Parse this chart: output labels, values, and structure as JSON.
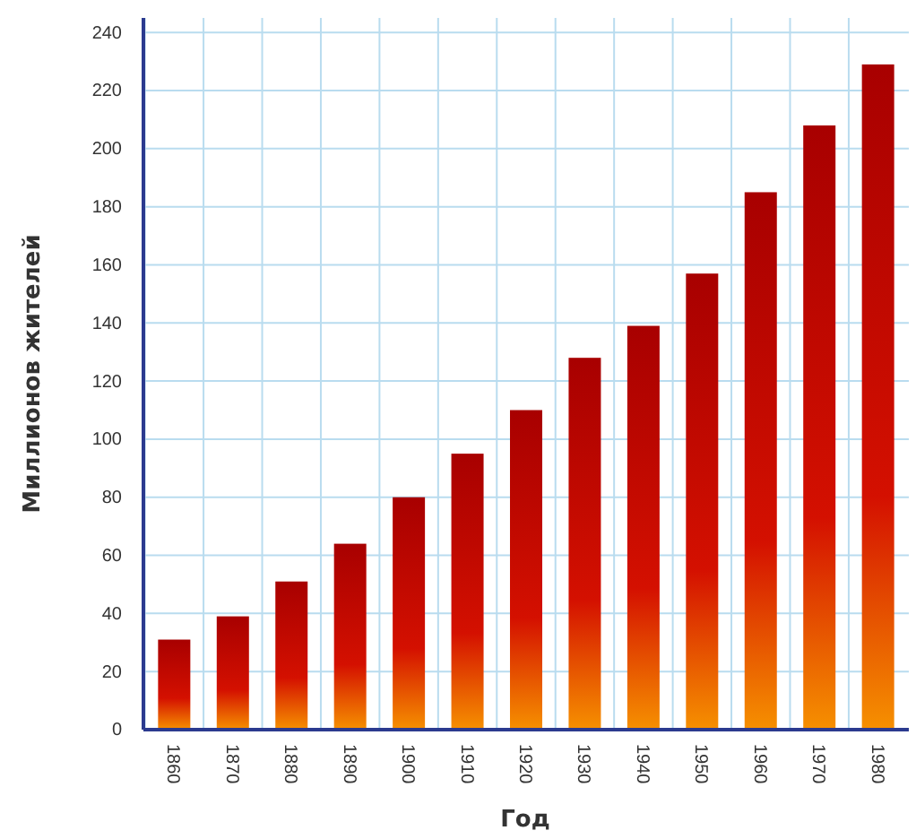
{
  "chart_data": {
    "type": "bar",
    "xlabel": "Год",
    "ylabel": "Миллионов жителей",
    "categories": [
      "1860",
      "1870",
      "1880",
      "1890",
      "1900",
      "1910",
      "1920",
      "1930",
      "1940",
      "1950",
      "1960",
      "1970",
      "1980"
    ],
    "values": [
      31,
      39,
      51,
      64,
      80,
      95,
      110,
      128,
      139,
      157,
      185,
      208,
      229
    ],
    "color": "#a80000",
    "ylim": [
      0,
      245
    ],
    "yticks": [
      0,
      20,
      40,
      60,
      80,
      100,
      120,
      140,
      160,
      180,
      200,
      220,
      240
    ],
    "grid": true
  }
}
